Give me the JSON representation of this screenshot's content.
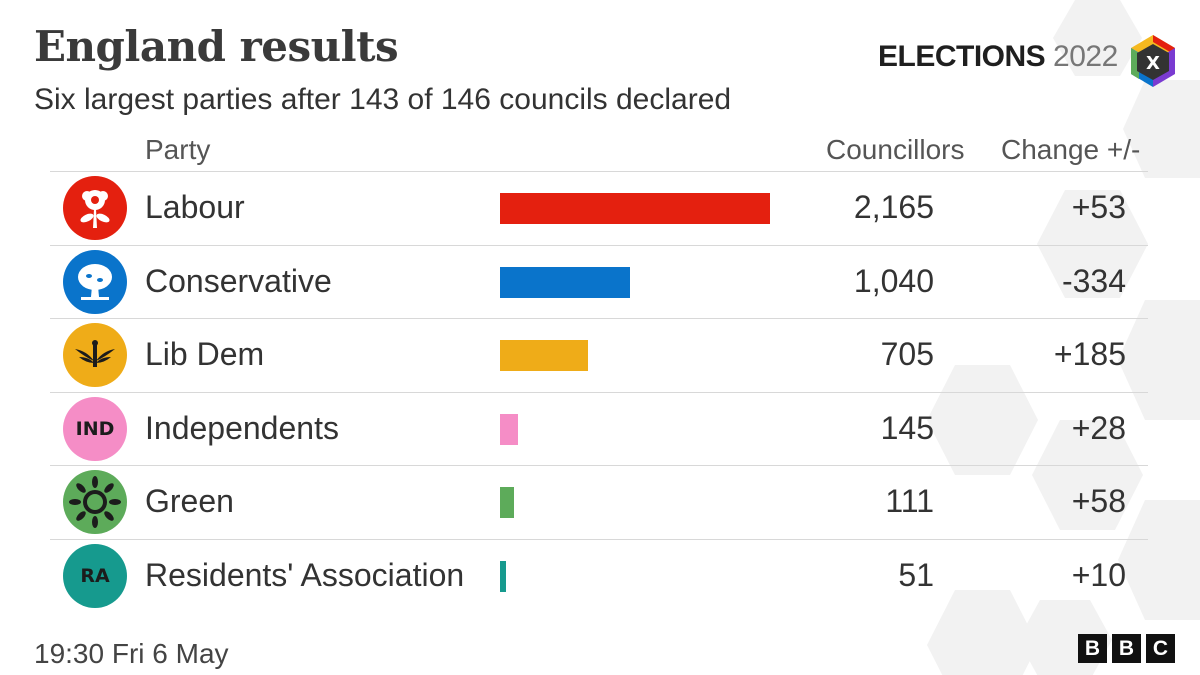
{
  "title": "England results",
  "subtitle": "Six largest parties after 143 of 146 councils declared",
  "brand": {
    "word1": "ELECTIONS",
    "word2": "2022",
    "logo_letter": "X"
  },
  "columns": {
    "party": "Party",
    "councillors": "Councillors",
    "change": "Change +/-"
  },
  "footer": {
    "timestamp": "19:30 Fri  6 May",
    "logo": [
      "B",
      "B",
      "C"
    ]
  },
  "colors": {
    "Labour": "#e4200f",
    "Conservative": "#0a74cb",
    "Lib Dem": "#efac18",
    "Independents": "#f58dc6",
    "Green": "#5dab5a",
    "Residents' Association": "#169a8e"
  },
  "icons": {
    "Labour": "rose-icon",
    "Conservative": "oak-tree-icon",
    "Lib Dem": "bird-icon",
    "Independents": "ind-text-icon",
    "Green": "globe-leaves-icon",
    "Residents' Association": "ra-text-icon"
  },
  "icon_text": {
    "Independents": "IND",
    "Residents' Association": "RA"
  },
  "chart_data": {
    "type": "bar",
    "orientation": "horizontal",
    "categories": [
      "Labour",
      "Conservative",
      "Lib Dem",
      "Independents",
      "Green",
      "Residents' Association"
    ],
    "values": [
      2165,
      1040,
      705,
      145,
      111,
      51
    ],
    "values_label": [
      "2,165",
      "1,040",
      "705",
      "145",
      "111",
      "51"
    ],
    "change": [
      "+53",
      "-334",
      "+185",
      "+28",
      "+58",
      "+10"
    ],
    "title": "England results",
    "subtitle": "Six largest parties after 143 of 146 councils declared",
    "xlabel": "",
    "ylabel": "",
    "xlim": [
      0,
      2165
    ],
    "grid": false,
    "legend": "none"
  }
}
